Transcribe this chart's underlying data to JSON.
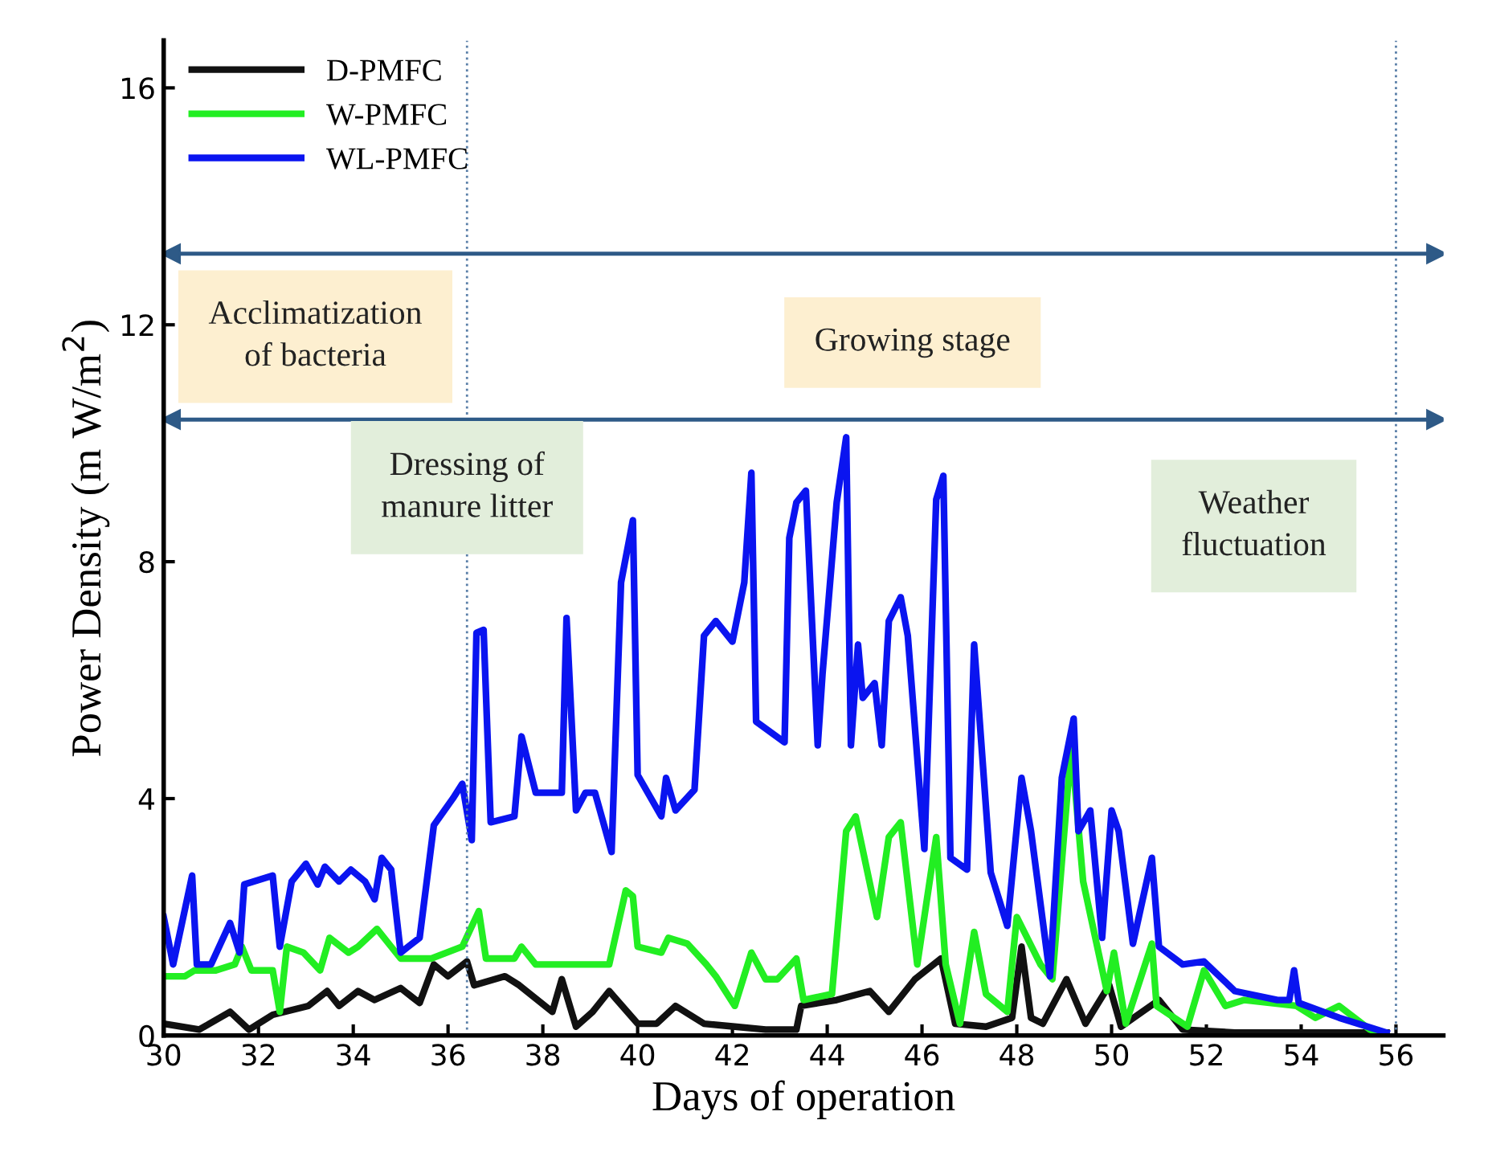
{
  "chart_data": {
    "type": "line",
    "xlabel": "Days of operation",
    "ylabel": "Power Density (m W/m$^{2}$)",
    "xlim": [
      30,
      57
    ],
    "ylim": [
      0,
      16.8
    ],
    "xticks": [
      30,
      32,
      34,
      36,
      38,
      40,
      42,
      44,
      46,
      48,
      50,
      52,
      54,
      56
    ],
    "yticks": [
      0,
      4,
      8,
      12,
      16
    ],
    "grid": false,
    "legend": "top left",
    "marker": "none",
    "line_style": "solid",
    "series": [
      {
        "name": "D-PMFC",
        "color": "#111111",
        "x": [
          30.0,
          30.75,
          31.4,
          31.8,
          32.3,
          33.05,
          33.45,
          33.7,
          34.1,
          34.45,
          35.0,
          35.4,
          35.7,
          36.0,
          36.4,
          36.55,
          37.2,
          37.5,
          38.2,
          38.4,
          38.7,
          39.05,
          39.4,
          40.0,
          40.4,
          40.8,
          41.4,
          42.05,
          42.7,
          43.35,
          43.45,
          44.2,
          44.9,
          45.3,
          45.85,
          46.4,
          46.7,
          47.35,
          47.9,
          48.1,
          48.3,
          48.55,
          49.05,
          49.45,
          49.95,
          50.2,
          51.0,
          51.5,
          52.6,
          55.8
        ],
        "values": [
          0.2,
          0.1,
          0.4,
          0.1,
          0.35,
          0.5,
          0.75,
          0.5,
          0.75,
          0.6,
          0.8,
          0.55,
          1.2,
          1.0,
          1.25,
          0.85,
          1.0,
          0.85,
          0.4,
          0.95,
          0.15,
          0.4,
          0.75,
          0.2,
          0.2,
          0.5,
          0.2,
          0.15,
          0.1,
          0.1,
          0.5,
          0.6,
          0.75,
          0.4,
          0.95,
          1.3,
          0.2,
          0.15,
          0.3,
          1.5,
          0.3,
          0.2,
          0.95,
          0.2,
          0.85,
          0.15,
          0.6,
          0.1,
          0.05,
          0.05
        ]
      },
      {
        "name": "W-PMFC",
        "color": "#22ee22",
        "x": [
          30.0,
          30.45,
          30.65,
          31.1,
          31.5,
          31.65,
          31.85,
          32.3,
          32.45,
          32.6,
          32.95,
          33.3,
          33.5,
          33.9,
          34.1,
          34.5,
          34.8,
          35.0,
          35.65,
          36.3,
          36.65,
          36.8,
          37.4,
          37.55,
          37.85,
          39.0,
          39.4,
          39.75,
          39.9,
          40.0,
          40.5,
          40.65,
          41.05,
          41.45,
          41.65,
          42.05,
          42.4,
          42.7,
          42.95,
          43.35,
          43.5,
          44.1,
          44.4,
          44.6,
          45.05,
          45.3,
          45.55,
          45.9,
          46.3,
          46.5,
          46.8,
          47.1,
          47.35,
          47.8,
          48.0,
          48.5,
          48.75,
          49.15,
          49.4,
          49.9,
          50.05,
          50.3,
          50.85,
          50.95,
          51.6,
          51.95,
          52.4,
          52.8,
          53.9,
          54.3,
          54.8,
          55.45,
          55.8
        ],
        "values": [
          1.0,
          1.0,
          1.1,
          1.1,
          1.2,
          1.5,
          1.1,
          1.1,
          0.4,
          1.5,
          1.4,
          1.1,
          1.65,
          1.4,
          1.5,
          1.8,
          1.5,
          1.3,
          1.3,
          1.5,
          2.1,
          1.3,
          1.3,
          1.5,
          1.2,
          1.2,
          1.2,
          2.45,
          2.35,
          1.5,
          1.4,
          1.65,
          1.55,
          1.2,
          1.0,
          0.5,
          1.4,
          0.95,
          0.95,
          1.3,
          0.6,
          0.7,
          3.45,
          3.7,
          2.0,
          3.35,
          3.6,
          1.2,
          3.35,
          1.2,
          0.2,
          1.75,
          0.7,
          0.4,
          2.0,
          1.2,
          0.95,
          4.9,
          2.6,
          0.75,
          1.4,
          0.2,
          1.55,
          0.5,
          0.15,
          1.1,
          0.5,
          0.6,
          0.5,
          0.3,
          0.5,
          0.1,
          0.0
        ]
      },
      {
        "name": "WL-PMFC",
        "color": "#0a14f0",
        "x": [
          30.0,
          30.2,
          30.6,
          30.7,
          31.0,
          31.4,
          31.6,
          31.7,
          32.3,
          32.45,
          32.7,
          33.0,
          33.25,
          33.4,
          33.7,
          33.95,
          34.25,
          34.45,
          34.6,
          34.8,
          35.0,
          35.4,
          35.7,
          36.1,
          36.3,
          36.5,
          36.6,
          36.75,
          36.9,
          37.4,
          37.55,
          37.85,
          38.4,
          38.5,
          38.7,
          38.9,
          39.1,
          39.45,
          39.65,
          39.9,
          40.0,
          40.5,
          40.6,
          40.8,
          41.2,
          41.4,
          41.65,
          42.0,
          42.25,
          42.4,
          42.5,
          43.1,
          43.2,
          43.35,
          43.55,
          43.8,
          43.9,
          44.2,
          44.4,
          44.5,
          44.65,
          44.75,
          45.0,
          45.15,
          45.3,
          45.55,
          45.7,
          46.05,
          46.3,
          46.45,
          46.6,
          46.95,
          47.1,
          47.45,
          47.8,
          48.1,
          48.3,
          48.7,
          48.95,
          49.2,
          49.3,
          49.55,
          49.8,
          50.0,
          50.15,
          50.45,
          50.85,
          51.0,
          51.5,
          51.95,
          52.6,
          53.5,
          53.75,
          53.85,
          53.95,
          54.8,
          55.8
        ],
        "values": [
          2.0,
          1.2,
          2.7,
          1.2,
          1.2,
          1.9,
          1.4,
          2.55,
          2.7,
          1.5,
          2.6,
          2.9,
          2.55,
          2.85,
          2.6,
          2.8,
          2.6,
          2.3,
          3.0,
          2.8,
          1.4,
          1.65,
          3.55,
          4.0,
          4.25,
          3.3,
          6.8,
          6.85,
          3.6,
          3.7,
          5.05,
          4.1,
          4.1,
          7.05,
          3.8,
          4.1,
          4.1,
          3.1,
          7.65,
          8.7,
          4.4,
          3.7,
          4.35,
          3.8,
          4.15,
          6.75,
          7.0,
          6.65,
          7.65,
          9.5,
          5.3,
          4.95,
          8.4,
          9.0,
          9.2,
          4.9,
          6.1,
          9.0,
          10.1,
          4.9,
          6.6,
          5.7,
          5.95,
          4.9,
          7.0,
          7.4,
          6.75,
          3.15,
          9.05,
          9.45,
          3.0,
          2.8,
          6.6,
          2.75,
          1.85,
          4.35,
          3.45,
          1.0,
          4.35,
          5.35,
          3.45,
          3.8,
          1.65,
          3.8,
          3.45,
          1.55,
          3.0,
          1.5,
          1.2,
          1.25,
          0.75,
          0.6,
          0.6,
          1.1,
          0.55,
          0.3,
          0.05
        ]
      }
    ],
    "ref_lines": [
      {
        "axis": "x",
        "value": 36.4,
        "color": "#5a7fa8",
        "line_style": "dotted"
      },
      {
        "axis": "x",
        "value": 56,
        "color": "#5a7fa8",
        "line_style": "dotted"
      },
      {
        "axis": "y",
        "value": 13.2,
        "color": "#2e5a87",
        "line_style": "solid"
      },
      {
        "axis": "y",
        "value": 10.4,
        "color": "#2e5a87",
        "line_style": "solid"
      }
    ],
    "annotations": [
      "Acclimatization\nof bacteria",
      "Growing stage",
      {
        "text": "Dressing of\nmanure litter",
        "x": 36.4,
        "y": 9.25
      },
      "Weather\nfluctuation"
    ]
  }
}
